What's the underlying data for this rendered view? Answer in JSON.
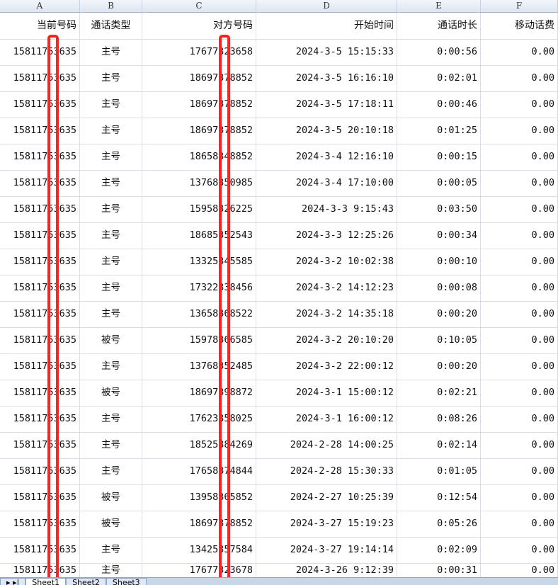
{
  "columns": [
    "A",
    "B",
    "C",
    "D",
    "E",
    "F"
  ],
  "headers": [
    "当前号码",
    "通话类型",
    "对方号码",
    "开始时间",
    "通话时长",
    "移动话费"
  ],
  "rows": [
    [
      "15811753635",
      "主号",
      "17677323658",
      "2024-3-5 15:15:33",
      "0:00:56",
      "0.00"
    ],
    [
      "15811753635",
      "主号",
      "18697378852",
      "2024-3-5 16:16:10",
      "0:02:01",
      "0.00"
    ],
    [
      "15811753635",
      "主号",
      "18697378852",
      "2024-3-5 17:18:11",
      "0:00:46",
      "0.00"
    ],
    [
      "15811753635",
      "主号",
      "18697378852",
      "2024-3-5 20:10:18",
      "0:01:25",
      "0.00"
    ],
    [
      "15811753635",
      "主号",
      "18658348852",
      "2024-3-4 12:16:10",
      "0:00:15",
      "0.00"
    ],
    [
      "15811753635",
      "主号",
      "13768350985",
      "2024-3-4 17:10:00",
      "0:00:05",
      "0.00"
    ],
    [
      "15811753635",
      "主号",
      "15958326225",
      "2024-3-3 9:15:43",
      "0:03:50",
      "0.00"
    ],
    [
      "15811753635",
      "主号",
      "18685352543",
      "2024-3-3 12:25:26",
      "0:00:34",
      "0.00"
    ],
    [
      "15811753635",
      "主号",
      "13325345585",
      "2024-3-2 10:02:38",
      "0:00:10",
      "0.00"
    ],
    [
      "15811753635",
      "主号",
      "17322338456",
      "2024-3-2 14:12:23",
      "0:00:08",
      "0.00"
    ],
    [
      "15811753635",
      "主号",
      "13658368522",
      "2024-3-2 14:35:18",
      "0:00:20",
      "0.00"
    ],
    [
      "15811753635",
      "被号",
      "15978366585",
      "2024-3-2 20:10:20",
      "0:10:05",
      "0.00"
    ],
    [
      "15811753635",
      "主号",
      "13768352485",
      "2024-3-2 22:00:12",
      "0:00:20",
      "0.00"
    ],
    [
      "15811753635",
      "被号",
      "18697398872",
      "2024-3-1 15:00:12",
      "0:02:21",
      "0.00"
    ],
    [
      "15811753635",
      "主号",
      "17623358025",
      "2024-3-1 16:00:12",
      "0:08:26",
      "0.00"
    ],
    [
      "15811753635",
      "主号",
      "18525384269",
      "2024-2-28 14:00:25",
      "0:02:14",
      "0.00"
    ],
    [
      "15811753635",
      "主号",
      "17658374844",
      "2024-2-28 15:30:33",
      "0:01:05",
      "0.00"
    ],
    [
      "15811753635",
      "被号",
      "13958365852",
      "2024-2-27 10:25:39",
      "0:12:54",
      "0.00"
    ],
    [
      "15811753635",
      "被号",
      "18697378852",
      "2024-3-27 15:19:23",
      "0:05:26",
      "0.00"
    ],
    [
      "15811753635",
      "主号",
      "13425357584",
      "2024-3-27 19:14:14",
      "0:02:09",
      "0.00"
    ],
    [
      "15811753635",
      "主号",
      "17677323678",
      "2024-3-26 9:12:39",
      "0:00:31",
      "0.00"
    ]
  ],
  "sheet_tabs": [
    "Sheet1",
    "Sheet2",
    "Sheet3"
  ],
  "active_sheet": "Sheet1",
  "highlight_color": "#ff2222"
}
